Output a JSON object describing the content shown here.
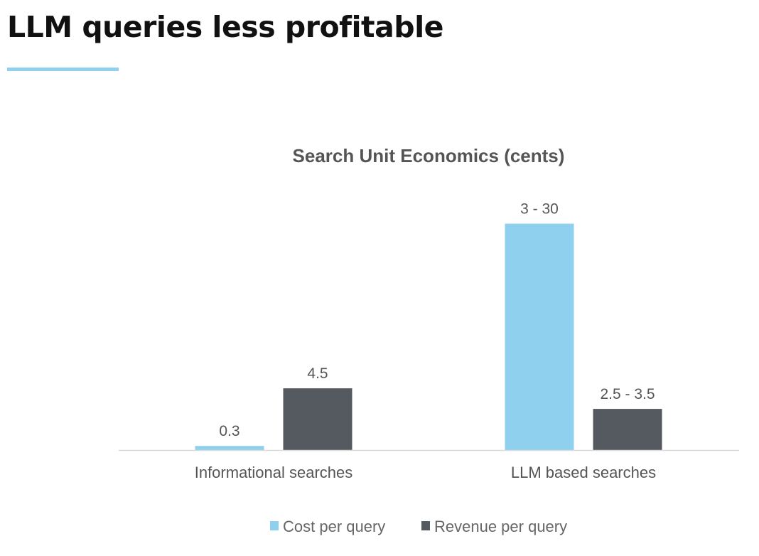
{
  "heading": "LLM queries less profitable",
  "colors": {
    "accent": "#8fd0ee",
    "cost": "#8fd0ee",
    "revenue": "#545a60",
    "text": "#555555",
    "axis": "#d9d9d9"
  },
  "chart_data": {
    "type": "bar",
    "title": "Search Unit Economics (cents)",
    "xlabel": "",
    "ylabel": "",
    "categories": [
      "Informational searches",
      "LLM based searches"
    ],
    "series": [
      {
        "name": "Cost per query",
        "values": [
          {
            "low": 0.3,
            "high": 0.3
          },
          {
            "low": 3,
            "high": 30
          }
        ],
        "labels": [
          "0.3",
          "3 - 30"
        ]
      },
      {
        "name": "Revenue per query",
        "values": [
          {
            "low": 4.5,
            "high": 4.5
          },
          {
            "low": 2.5,
            "high": 3.5
          }
        ],
        "labels": [
          "4.5",
          "2.5 - 3.5"
        ]
      }
    ],
    "grid": false,
    "legend": "bottom"
  }
}
